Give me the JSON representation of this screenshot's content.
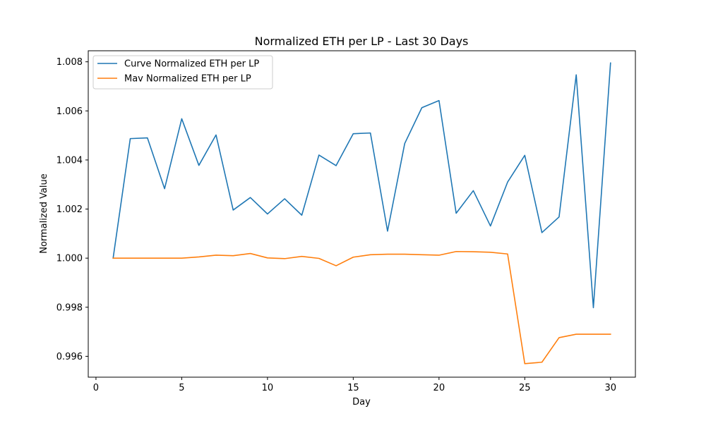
{
  "chart_data": {
    "type": "line",
    "title": "Normalized ETH per LP - Last 30 Days",
    "xlabel": "Day",
    "ylabel": "Normalized Value",
    "xlim": [
      -0.45,
      31.45
    ],
    "ylim": [
      0.99515,
      1.00845
    ],
    "xticks": [
      0,
      5,
      10,
      15,
      20,
      25,
      30
    ],
    "yticks": [
      0.996,
      0.998,
      1.0,
      1.002,
      1.004,
      1.006,
      1.008
    ],
    "ytick_labels": [
      "0.996",
      "0.998",
      "1.000",
      "1.002",
      "1.004",
      "1.006",
      "1.008"
    ],
    "grid": false,
    "legend_position": "top-left",
    "x": [
      1,
      2,
      3,
      4,
      5,
      6,
      7,
      8,
      9,
      10,
      11,
      12,
      13,
      14,
      15,
      16,
      17,
      18,
      19,
      20,
      21,
      22,
      23,
      24,
      25,
      26,
      27,
      28,
      29,
      30
    ],
    "series": [
      {
        "name": "Curve Normalized ETH per LP",
        "color": "#1f77b4",
        "values": [
          1.0,
          1.00487,
          1.0049,
          1.00283,
          1.00568,
          1.00378,
          1.00502,
          1.00196,
          1.00247,
          1.0018,
          1.00242,
          1.00175,
          1.0042,
          1.00377,
          1.00507,
          1.0051,
          1.0011,
          1.00467,
          1.00613,
          1.00642,
          1.00183,
          1.00275,
          1.00131,
          1.0031,
          1.00419,
          1.00104,
          1.00168,
          1.00747,
          0.99798,
          1.00795
        ]
      },
      {
        "name": "Mav Normalized ETH per LP",
        "color": "#ff7f0e",
        "values": [
          1.0,
          1.0,
          1.0,
          1.0,
          1.0,
          1.00005,
          1.00012,
          1.0001,
          1.00019,
          1.00001,
          0.99998,
          1.00007,
          0.99999,
          0.99969,
          1.00004,
          1.00014,
          1.00016,
          1.00016,
          1.00014,
          1.00012,
          1.00027,
          1.00026,
          1.00024,
          1.00017,
          0.9957,
          0.99576,
          0.99676,
          0.9969,
          0.9969,
          0.9969
        ]
      }
    ]
  }
}
